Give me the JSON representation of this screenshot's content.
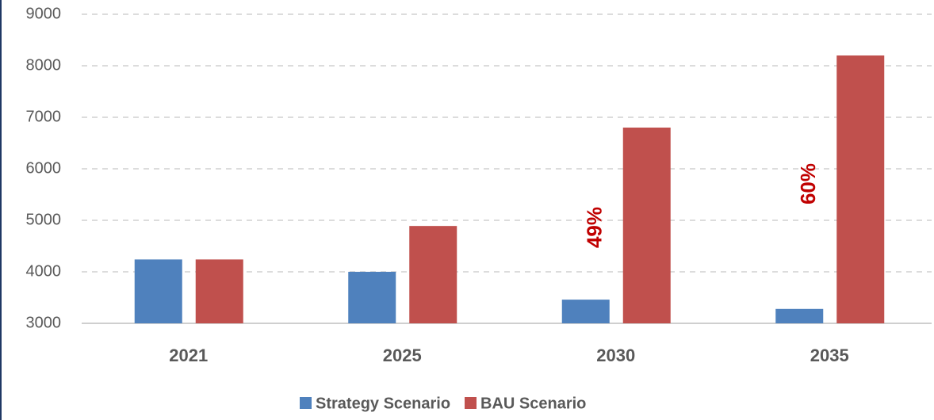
{
  "chart_data": {
    "type": "bar",
    "categories": [
      "2021",
      "2025",
      "2030",
      "2035"
    ],
    "series": [
      {
        "name": "Strategy Scenario",
        "color": "#4f81bd",
        "values": [
          4240,
          4000,
          3460,
          3280
        ]
      },
      {
        "name": "BAU Scenario",
        "color": "#c0504d",
        "values": [
          4240,
          4890,
          6800,
          8200
        ]
      }
    ],
    "ylim": [
      3000,
      9000
    ],
    "yticks": [
      3000,
      4000,
      5000,
      6000,
      7000,
      8000,
      9000
    ],
    "grid": true,
    "annotations": [
      "49%",
      "60%"
    ],
    "annotation_color": "#c00000",
    "legend": "bottom"
  }
}
